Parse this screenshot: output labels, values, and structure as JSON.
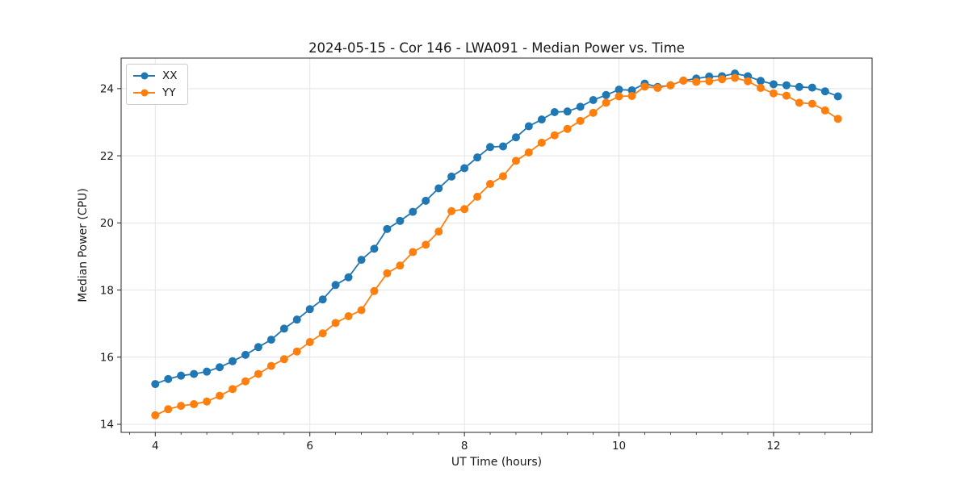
{
  "figure": {
    "background": "#ffffff",
    "frame_color": "#262626",
    "grid_color": "#e4e4e4",
    "text_color": "#1a1a1a"
  },
  "chart_data": {
    "type": "line",
    "title": "2024-05-15 - Cor 146 - LWA091 - Median Power vs. Time",
    "xlabel": "UT Time (hours)",
    "ylabel": "Median Power (CPU)",
    "xlim": [
      3.558,
      13.275
    ],
    "ylim": [
      13.76,
      24.91
    ],
    "xticks": [
      4,
      6,
      8,
      10,
      12
    ],
    "yticks": [
      14,
      16,
      18,
      20,
      22,
      24
    ],
    "minor_xtick_step": 0.33333,
    "grid": true,
    "legend_position": "upper-left",
    "marker": "circle",
    "x": [
      4.0,
      4.167,
      4.333,
      4.5,
      4.667,
      4.833,
      5.0,
      5.167,
      5.333,
      5.5,
      5.667,
      5.833,
      6.0,
      6.167,
      6.333,
      6.5,
      6.667,
      6.833,
      7.0,
      7.167,
      7.333,
      7.5,
      7.667,
      7.833,
      8.0,
      8.167,
      8.333,
      8.5,
      8.667,
      8.833,
      9.0,
      9.167,
      9.333,
      9.5,
      9.667,
      9.833,
      10.0,
      10.167,
      10.333,
      10.5,
      10.667,
      10.833,
      11.0,
      11.167,
      11.333,
      11.5,
      11.667,
      11.833,
      12.0,
      12.167,
      12.333,
      12.5,
      12.667,
      12.833
    ],
    "series": [
      {
        "name": "XX",
        "color": "#1f77b4",
        "values": [
          15.2,
          15.35,
          15.45,
          15.5,
          15.57,
          15.7,
          15.88,
          16.07,
          16.3,
          16.52,
          16.85,
          17.12,
          17.43,
          17.72,
          18.15,
          18.38,
          18.9,
          19.23,
          19.82,
          20.06,
          20.33,
          20.66,
          21.03,
          21.38,
          21.63,
          21.95,
          22.26,
          22.28,
          22.55,
          22.88,
          23.08,
          23.3,
          23.32,
          23.46,
          23.66,
          23.81,
          23.97,
          23.95,
          24.15,
          24.05,
          24.1,
          24.24,
          24.3,
          24.36,
          24.37,
          24.45,
          24.37,
          24.23,
          24.13,
          24.1,
          24.05,
          24.03,
          23.92,
          23.77
        ]
      },
      {
        "name": "YY",
        "color": "#ff7f0e",
        "values": [
          14.27,
          14.45,
          14.55,
          14.6,
          14.68,
          14.85,
          15.05,
          15.28,
          15.5,
          15.74,
          15.94,
          16.17,
          16.45,
          16.71,
          17.02,
          17.22,
          17.4,
          17.97,
          18.5,
          18.73,
          19.13,
          19.35,
          19.74,
          20.35,
          20.41,
          20.78,
          21.16,
          21.39,
          21.85,
          22.1,
          22.39,
          22.61,
          22.8,
          23.04,
          23.28,
          23.58,
          23.77,
          23.78,
          24.06,
          24.02,
          24.1,
          24.24,
          24.2,
          24.22,
          24.28,
          24.32,
          24.22,
          24.02,
          23.86,
          23.79,
          23.58,
          23.55,
          23.35,
          23.1
        ]
      }
    ]
  }
}
